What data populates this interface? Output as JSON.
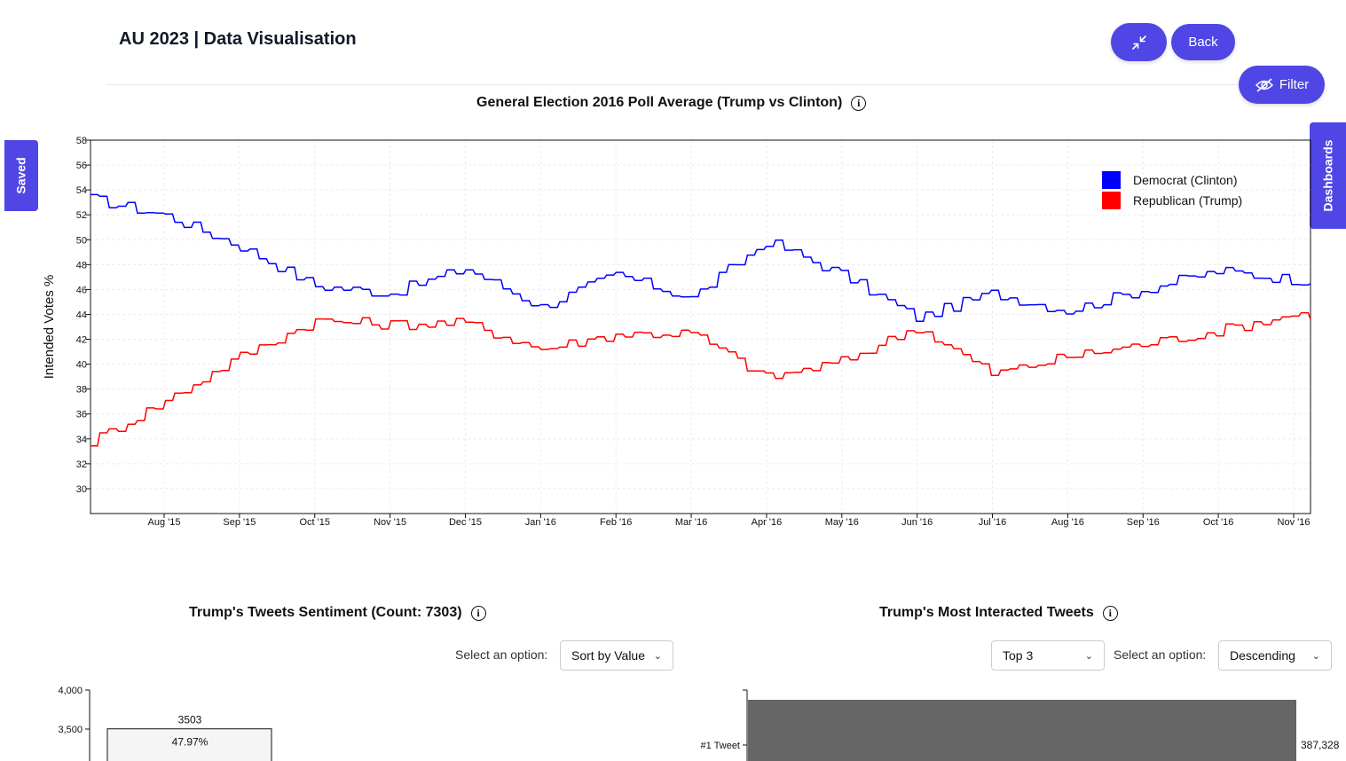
{
  "app": {
    "title": "AU 2023 | Data Visualisation"
  },
  "header": {
    "collapse_icon": "collapse-arrows-icon",
    "back_label": "Back",
    "filter_label": "Filter",
    "filter_icon": "eye-slash-icon"
  },
  "side_tabs": {
    "saved": "Saved",
    "dashboards": "Dashboards"
  },
  "colors": {
    "accent": "#4f46e5",
    "democrat": "#0000ff",
    "republican": "#ff0000",
    "bar_gray": "#666666"
  },
  "poll_chart": {
    "title": "General Election 2016 Poll Average (Trump vs Clinton)",
    "info_icon": "info-icon",
    "chart_data": {
      "type": "line",
      "ylabel": "Intended Votes %",
      "ylim": [
        28,
        58
      ],
      "yticks": [
        30,
        32,
        34,
        36,
        38,
        40,
        42,
        44,
        46,
        48,
        50,
        52,
        54,
        56,
        58
      ],
      "xticks": [
        "Aug '15",
        "Sep '15",
        "Oct '15",
        "Nov '15",
        "Dec '15",
        "Jan '16",
        "Feb '16",
        "Mar '16",
        "Apr '16",
        "May '16",
        "Jun '16",
        "Jul '16",
        "Aug '16",
        "Sep '16",
        "Oct '16",
        "Nov '16"
      ],
      "grid": true,
      "legend_position": "top-right",
      "series": [
        {
          "name": "Democrat (Clinton)",
          "color": "#0000ff",
          "x": [
            "Jul '15",
            "Aug '15",
            "Sep '15",
            "Oct '15",
            "Nov '15",
            "Dec '15",
            "Jan '16",
            "Feb '16",
            "Mar '16",
            "Apr '16",
            "May '16",
            "Jun '16",
            "Jul '16",
            "Aug '16",
            "Sep '16",
            "Oct '16",
            "Nov '16"
          ],
          "values": [
            53.3,
            52.0,
            49.5,
            46.3,
            45.7,
            47.7,
            44.6,
            47.2,
            45.3,
            49.9,
            47.2,
            43.7,
            45.7,
            44.3,
            46.0,
            47.5,
            46.8
          ]
        },
        {
          "name": "Republican (Trump)",
          "color": "#ff0000",
          "x": [
            "Jul '15",
            "Aug '15",
            "Sep '15",
            "Oct '15",
            "Nov '15",
            "Dec '15",
            "Jan '16",
            "Feb '16",
            "Mar '16",
            "Apr '16",
            "May '16",
            "Jun '16",
            "Jul '16",
            "Aug '16",
            "Sep '16",
            "Oct '16",
            "Nov '16"
          ],
          "values": [
            33.7,
            37.0,
            40.6,
            43.5,
            43.2,
            43.3,
            41.2,
            42.4,
            42.5,
            38.9,
            40.2,
            43.0,
            39.2,
            40.6,
            41.6,
            42.7,
            44.0
          ]
        }
      ]
    }
  },
  "sentiment_chart": {
    "title": "Trump's Tweets Sentiment (Count: 7303)",
    "info_icon": "info-icon",
    "select_label": "Select an option:",
    "select_value": "Sort by Value",
    "chart_data": {
      "type": "bar",
      "yticks": [
        "4,000",
        "3,500"
      ],
      "bars": [
        {
          "value": 3503,
          "label": "3503",
          "percent": "47.97%"
        }
      ]
    }
  },
  "interaction_chart": {
    "title": "Trump's Most Interacted Tweets",
    "info_icon": "info-icon",
    "top_select_value": "Top 3",
    "select_label": "Select an option:",
    "order_select_value": "Descending",
    "chart_data": {
      "type": "bar",
      "categories": [
        "#1 Tweet"
      ],
      "values": [
        387328
      ],
      "value_labels": [
        "387,328"
      ]
    }
  }
}
